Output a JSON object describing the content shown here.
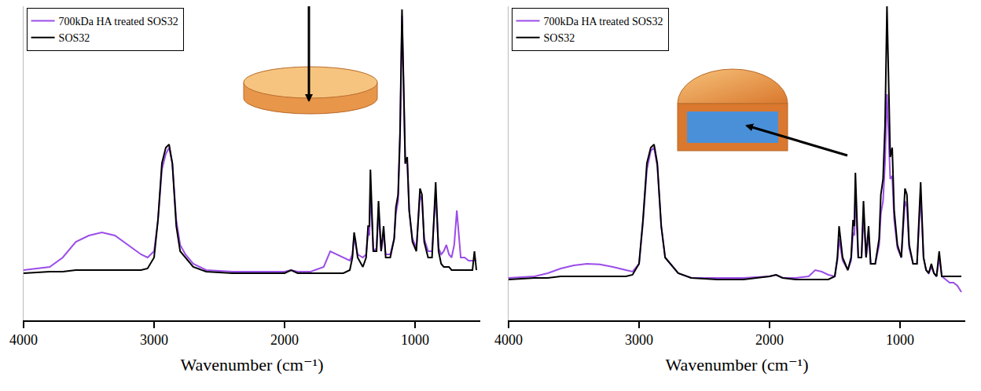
{
  "chart_data": [
    {
      "type": "line",
      "xlabel": "Wavenumber (cm⁻¹)",
      "xlim": [
        4000,
        500
      ],
      "xticks": [
        4000,
        3000,
        2000,
        1000
      ],
      "ylim": [
        0,
        1
      ],
      "tick_labels": "x",
      "legend": "upper left",
      "x": [
        4000,
        3800,
        3700,
        3600,
        3500,
        3400,
        3300,
        3200,
        3100,
        3050,
        3000,
        2970,
        2940,
        2910,
        2885,
        2860,
        2830,
        2800,
        2760,
        2700,
        2600,
        2400,
        2200,
        2000,
        1950,
        1900,
        1800,
        1700,
        1650,
        1600,
        1550,
        1500,
        1480,
        1467,
        1455,
        1440,
        1400,
        1375,
        1360,
        1350,
        1342,
        1320,
        1295,
        1280,
        1260,
        1241,
        1225,
        1190,
        1160,
        1147,
        1130,
        1115,
        1100,
        1085,
        1075,
        1060,
        1045,
        1020,
        990,
        962,
        947,
        930,
        900,
        870,
        842,
        820,
        800,
        780,
        760,
        740,
        720,
        700,
        680,
        650,
        620,
        590,
        560,
        545,
        530
      ],
      "series": [
        {
          "name": "700kDa HA treated SOS32",
          "color": "#9b4de8",
          "values": [
            0.16,
            0.17,
            0.2,
            0.25,
            0.27,
            0.28,
            0.27,
            0.24,
            0.21,
            0.2,
            0.22,
            0.32,
            0.48,
            0.53,
            0.55,
            0.5,
            0.32,
            0.24,
            0.21,
            0.18,
            0.16,
            0.155,
            0.155,
            0.155,
            0.16,
            0.155,
            0.155,
            0.17,
            0.22,
            0.21,
            0.2,
            0.19,
            0.21,
            0.27,
            0.24,
            0.21,
            0.2,
            0.21,
            0.28,
            0.27,
            0.42,
            0.22,
            0.23,
            0.35,
            0.22,
            0.28,
            0.21,
            0.21,
            0.26,
            0.34,
            0.38,
            0.58,
            0.97,
            0.68,
            0.5,
            0.5,
            0.35,
            0.26,
            0.23,
            0.4,
            0.38,
            0.26,
            0.22,
            0.22,
            0.4,
            0.23,
            0.21,
            0.22,
            0.24,
            0.21,
            0.2,
            0.24,
            0.35,
            0.2,
            0.2,
            0.19,
            0.19,
            0.19,
            0.19
          ]
        },
        {
          "name": "SOS32",
          "color": "#000000",
          "values": [
            0.15,
            0.155,
            0.155,
            0.16,
            0.16,
            0.16,
            0.16,
            0.16,
            0.16,
            0.165,
            0.2,
            0.32,
            0.5,
            0.55,
            0.56,
            0.5,
            0.3,
            0.22,
            0.2,
            0.17,
            0.155,
            0.15,
            0.15,
            0.15,
            0.16,
            0.15,
            0.15,
            0.15,
            0.15,
            0.15,
            0.15,
            0.16,
            0.2,
            0.28,
            0.25,
            0.2,
            0.17,
            0.2,
            0.3,
            0.3,
            0.48,
            0.22,
            0.22,
            0.38,
            0.22,
            0.3,
            0.2,
            0.2,
            0.26,
            0.36,
            0.4,
            0.6,
            0.99,
            0.7,
            0.5,
            0.52,
            0.35,
            0.25,
            0.22,
            0.42,
            0.4,
            0.25,
            0.2,
            0.2,
            0.44,
            0.22,
            0.18,
            0.17,
            0.17,
            0.17,
            0.16,
            0.16,
            0.16,
            0.16,
            0.16,
            0.16,
            0.16,
            0.22,
            0.16
          ]
        }
      ]
    },
    {
      "type": "line",
      "xlabel": "Wavenumber (cm⁻¹)",
      "xlim": [
        4000,
        500
      ],
      "xticks": [
        4000,
        3000,
        2000,
        1000
      ],
      "ylim": [
        0,
        1
      ],
      "tick_labels": "x",
      "legend": "upper left",
      "x": [
        4000,
        3800,
        3700,
        3600,
        3500,
        3400,
        3300,
        3200,
        3100,
        3050,
        3000,
        2970,
        2940,
        2910,
        2885,
        2860,
        2830,
        2800,
        2760,
        2700,
        2600,
        2400,
        2200,
        2000,
        1950,
        1900,
        1800,
        1700,
        1650,
        1600,
        1550,
        1500,
        1480,
        1467,
        1455,
        1440,
        1400,
        1375,
        1360,
        1350,
        1342,
        1320,
        1295,
        1280,
        1260,
        1241,
        1225,
        1190,
        1160,
        1147,
        1130,
        1115,
        1100,
        1085,
        1075,
        1060,
        1045,
        1020,
        990,
        962,
        947,
        930,
        900,
        870,
        842,
        820,
        800,
        780,
        760,
        740,
        720,
        700,
        680,
        650,
        620,
        590,
        560,
        545,
        530
      ],
      "series": [
        {
          "name": "700kDa HA treated SOS32",
          "color": "#9b4de8",
          "values": [
            0.135,
            0.14,
            0.15,
            0.165,
            0.175,
            0.18,
            0.178,
            0.17,
            0.16,
            0.155,
            0.18,
            0.31,
            0.48,
            0.54,
            0.55,
            0.49,
            0.3,
            0.2,
            0.18,
            0.15,
            0.135,
            0.135,
            0.135,
            0.14,
            0.145,
            0.135,
            0.135,
            0.14,
            0.16,
            0.155,
            0.145,
            0.14,
            0.19,
            0.26,
            0.23,
            0.19,
            0.16,
            0.19,
            0.28,
            0.27,
            0.4,
            0.2,
            0.2,
            0.33,
            0.2,
            0.27,
            0.18,
            0.18,
            0.24,
            0.34,
            0.38,
            0.5,
            0.72,
            0.55,
            0.45,
            0.46,
            0.32,
            0.23,
            0.2,
            0.38,
            0.36,
            0.23,
            0.18,
            0.18,
            0.4,
            0.2,
            0.16,
            0.15,
            0.17,
            0.15,
            0.14,
            0.2,
            0.14,
            0.13,
            0.12,
            0.12,
            0.11,
            0.1,
            0.09
          ]
        },
        {
          "name": "SOS32",
          "color": "#000000",
          "values": [
            0.13,
            0.135,
            0.135,
            0.14,
            0.14,
            0.14,
            0.14,
            0.14,
            0.14,
            0.145,
            0.18,
            0.32,
            0.5,
            0.55,
            0.56,
            0.5,
            0.3,
            0.2,
            0.18,
            0.15,
            0.135,
            0.13,
            0.13,
            0.14,
            0.145,
            0.135,
            0.13,
            0.13,
            0.13,
            0.13,
            0.13,
            0.14,
            0.2,
            0.3,
            0.26,
            0.2,
            0.16,
            0.2,
            0.32,
            0.3,
            0.47,
            0.2,
            0.2,
            0.38,
            0.2,
            0.3,
            0.18,
            0.18,
            0.26,
            0.4,
            0.45,
            0.62,
            1.0,
            0.72,
            0.52,
            0.55,
            0.35,
            0.24,
            0.2,
            0.42,
            0.4,
            0.24,
            0.18,
            0.18,
            0.44,
            0.2,
            0.16,
            0.15,
            0.18,
            0.15,
            0.14,
            0.22,
            0.14,
            0.14,
            0.14,
            0.14,
            0.14,
            0.14,
            0.14
          ]
        }
      ]
    }
  ]
}
